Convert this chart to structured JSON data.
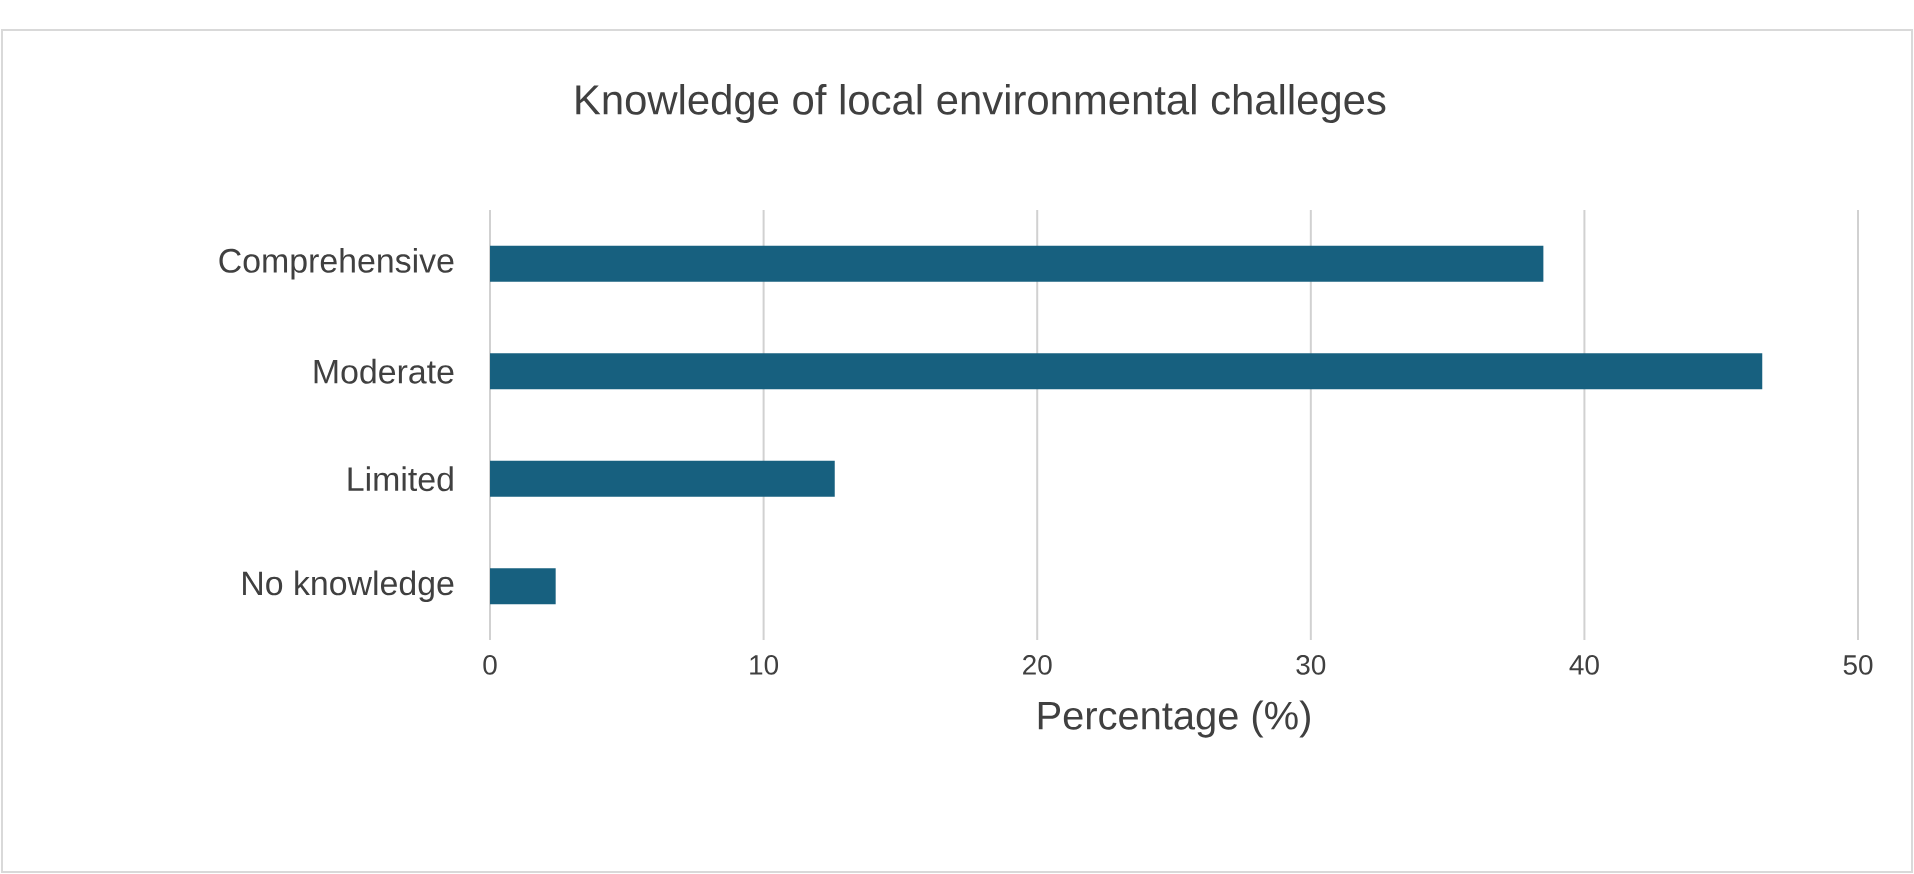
{
  "chart_data": {
    "type": "bar",
    "orientation": "horizontal",
    "title": "Knowledge of local environmental challeges",
    "xlabel": "Percentage (%)",
    "categories": [
      "Comprehensive",
      "Moderate",
      "Limited",
      "No knowledge"
    ],
    "values": [
      38.5,
      46.5,
      12.6,
      2.4
    ],
    "color": "#17607f",
    "xlim": [
      0,
      50
    ],
    "xticks": [
      0,
      10,
      20,
      30,
      40,
      50
    ],
    "grid": "x"
  }
}
